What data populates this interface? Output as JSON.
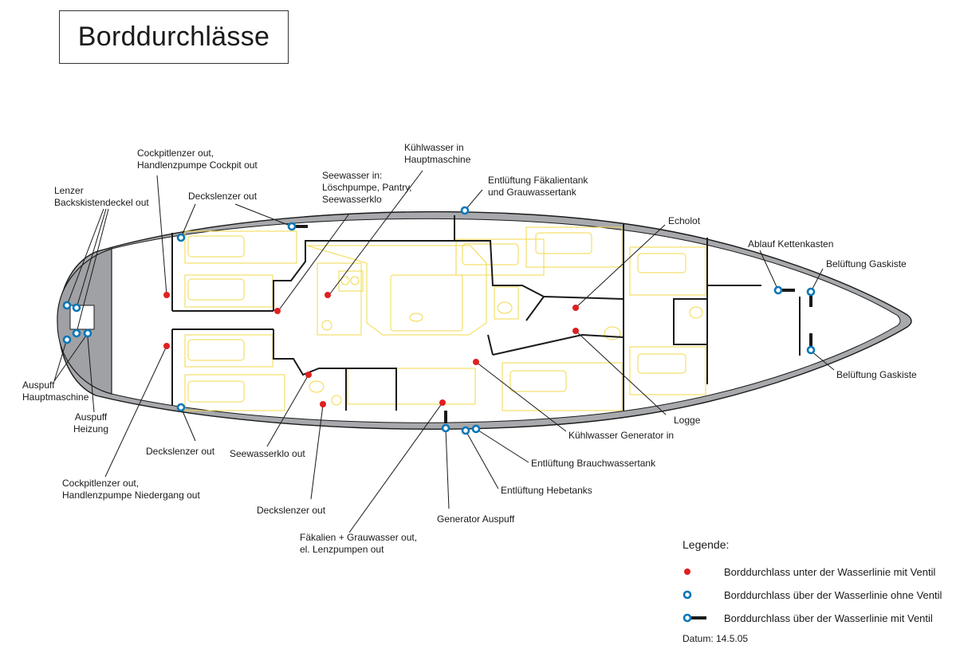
{
  "title": "Borddurchlässe",
  "colors": {
    "red_valve": "#e02020",
    "blue_ring": "#0a77b8",
    "hull_grey": "#a7a9ac",
    "furniture": "#f2d94a",
    "outline": "#1a1a1a"
  },
  "labels": {
    "lenzer": "Lenzer\nBackskistendeckel out",
    "auspuff_main": "Auspuff\nHauptmaschine",
    "auspuff_heizung": "Auspuff\nHeizung",
    "cockpit_top": "Cockpitlenzer out,\nHandlenzpumpe Cockpit out",
    "deckslenzer_top": "Deckslenzer out",
    "seewasser_in": "Seewasser in:\nLöschpumpe, Pantry,\nSeewasserklo",
    "kuehlwasser_main": "Kühlwasser in\nHauptmaschine",
    "entlueftung_faekal": "Entlüftung Fäkalientank\nund Grauwassertank",
    "echolot": "Echolot",
    "ablauf_kette": "Ablauf Kettenkasten",
    "belueftung_top": "Belüftung Gaskiste",
    "belueftung_bot": "Belüftung Gaskiste",
    "logge": "Logge",
    "kuehlwasser_gen": "Kühlwasser Generator in",
    "entlueftung_brauch": "Entlüftung Brauchwassertank",
    "entlueftung_hebe": "Entlüftung Hebetanks",
    "generator_auspuff": "Generator Auspuff",
    "faekalien_out": "Fäkalien + Grauwasser out,\nel. Lenzpumpen out",
    "deckslenzer_bot_mid": "Deckslenzer out",
    "seewasserklo_out": "Seewasserklo out",
    "deckslenzer_bot_left": "Deckslenzer out",
    "cockpit_bot": "Cockpitlenzer out,\nHandlenzpumpe Niedergang out"
  },
  "legend": {
    "heading": "Legende:",
    "items": [
      {
        "symbol": "red-dot",
        "text": "Borddurchlass unter der Wasserlinie mit Ventil"
      },
      {
        "symbol": "blue-ring",
        "text": "Borddurchlass über der Wasserlinie ohne Ventil"
      },
      {
        "symbol": "blue-ring-valve",
        "text": "Borddurchlass über der Wasserlinie mit Ventil"
      }
    ],
    "date": "Datum: 14.5.05"
  }
}
